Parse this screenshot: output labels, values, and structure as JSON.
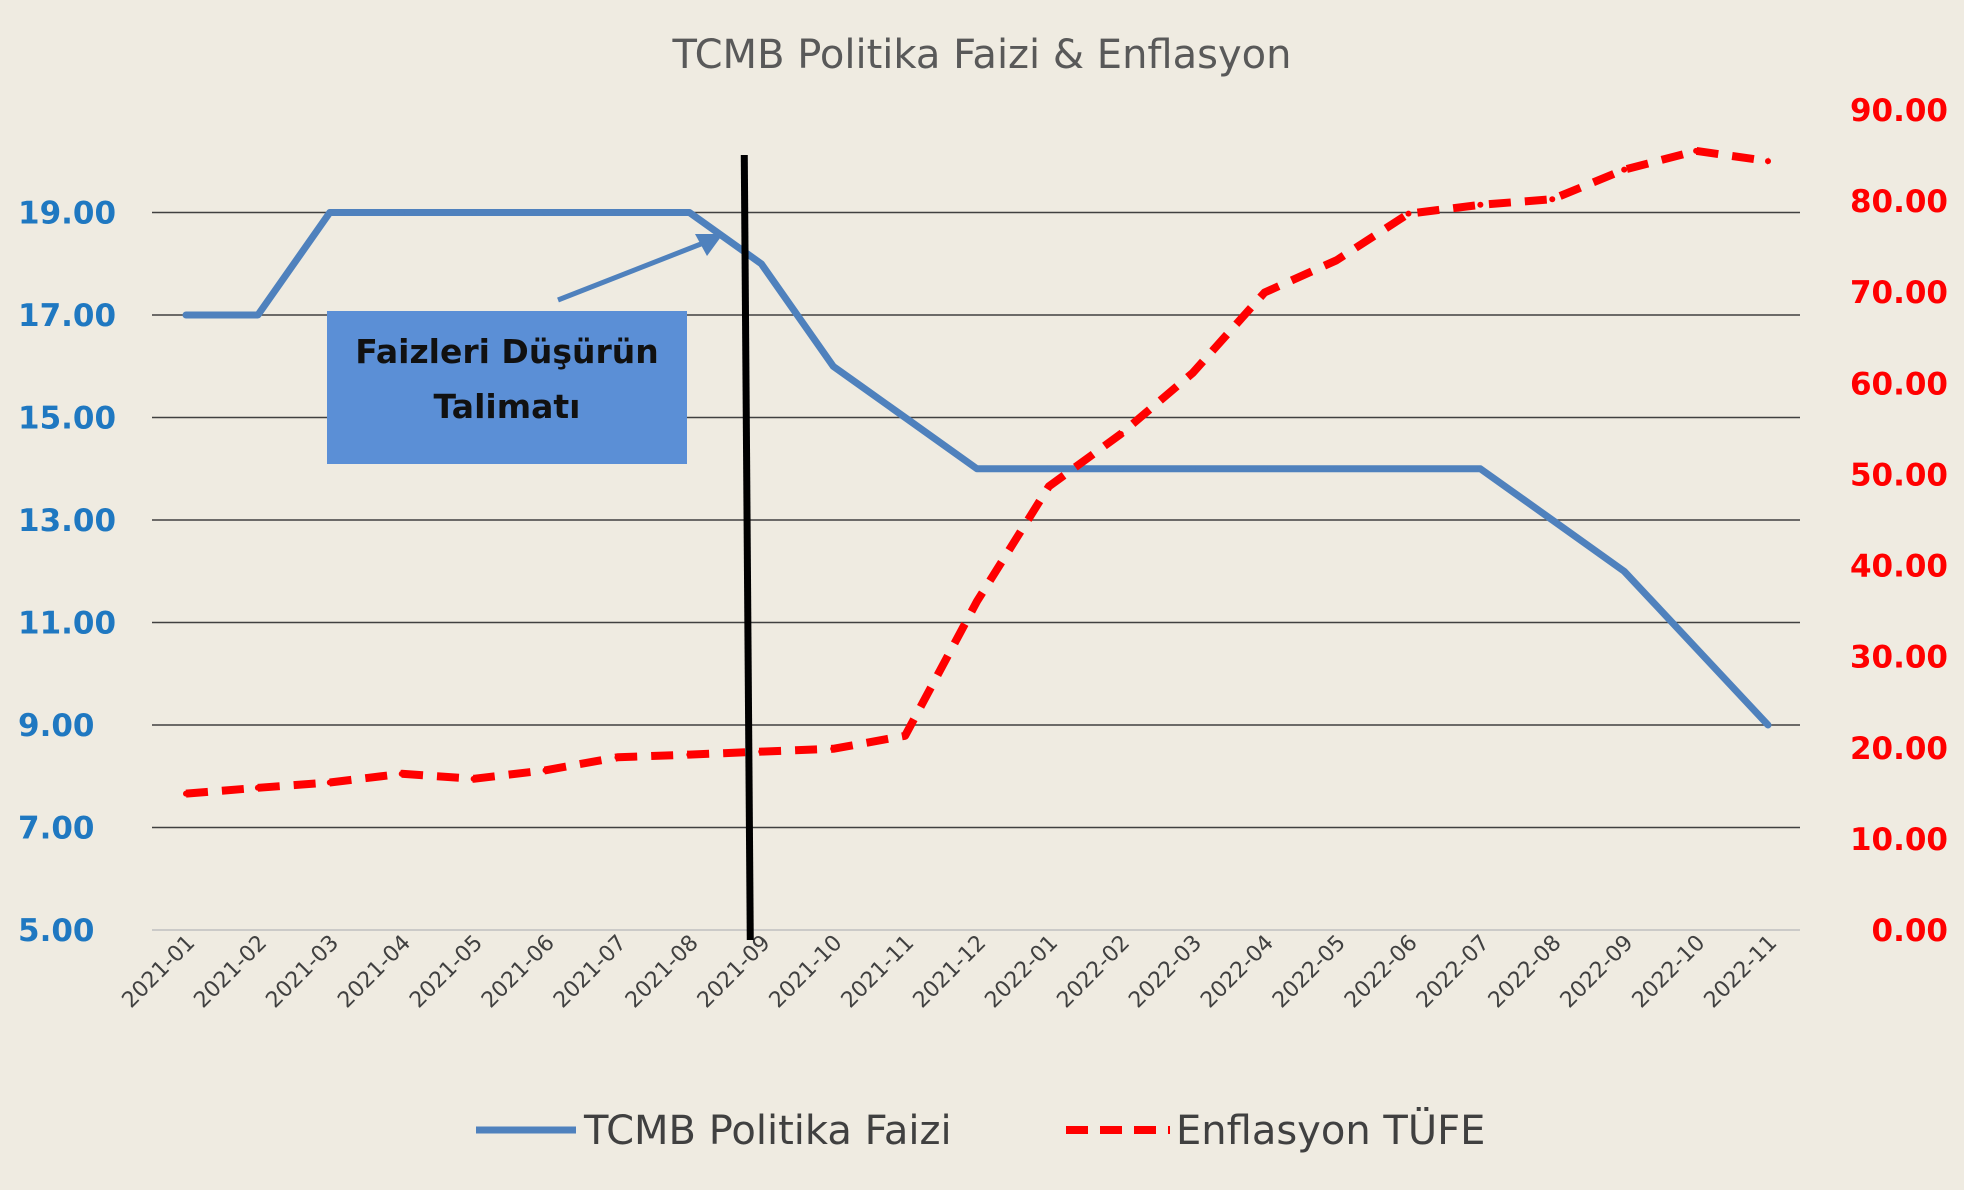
{
  "chart_data": {
    "type": "line",
    "title": "TCMB Politika Faizi & Enflasyon",
    "categories": [
      "2021-01",
      "2021-02",
      "2021-03",
      "2021-04",
      "2021-05",
      "2021-06",
      "2021-07",
      "2021-08",
      "2021-09",
      "2021-10",
      "2021-11",
      "2021-12",
      "2022-01",
      "2022-02",
      "2022-03",
      "2022-04",
      "2022-05",
      "2022-06",
      "2022-07",
      "2022-08",
      "2022-09",
      "2022-10",
      "2022-11"
    ],
    "series": [
      {
        "name": "TCMB Politika Faizi",
        "axis": "left",
        "color": "#4f81bd",
        "style": "solid",
        "values": [
          17,
          17,
          19,
          19,
          19,
          19,
          19,
          19,
          18,
          16,
          15,
          14,
          14,
          14,
          14,
          14,
          14,
          14,
          14,
          13,
          12,
          10.5,
          9
        ]
      },
      {
        "name": "Enflasyon TÜFE",
        "axis": "right",
        "color": "#ff0000",
        "style": "dashed",
        "values": [
          14.97,
          15.61,
          16.19,
          17.14,
          16.59,
          17.53,
          18.95,
          19.25,
          19.58,
          19.89,
          21.31,
          36.08,
          48.69,
          54.44,
          61.14,
          69.97,
          73.5,
          78.62,
          79.6,
          80.21,
          83.45,
          85.51,
          84.39
        ]
      }
    ],
    "y_left": {
      "min": 5,
      "max": 21,
      "ticks": [
        "5.00",
        "7.00",
        "9.00",
        "11.00",
        "13.00",
        "15.00",
        "17.00",
        "19.00"
      ],
      "color": "#1f78c1"
    },
    "y_right": {
      "min": 0,
      "max": 90,
      "ticks": [
        "0.00",
        "10.00",
        "20.00",
        "30.00",
        "40.00",
        "50.00",
        "60.00",
        "70.00",
        "80.00",
        "90.00"
      ],
      "color": "#ff0000"
    },
    "grid": true,
    "legend_position": "bottom",
    "annotation": {
      "text_line1": "Faizleri Düşürün",
      "text_line2": "Talimatı",
      "box_color": "#5b8fd6",
      "marker_category": "2021-09"
    }
  }
}
